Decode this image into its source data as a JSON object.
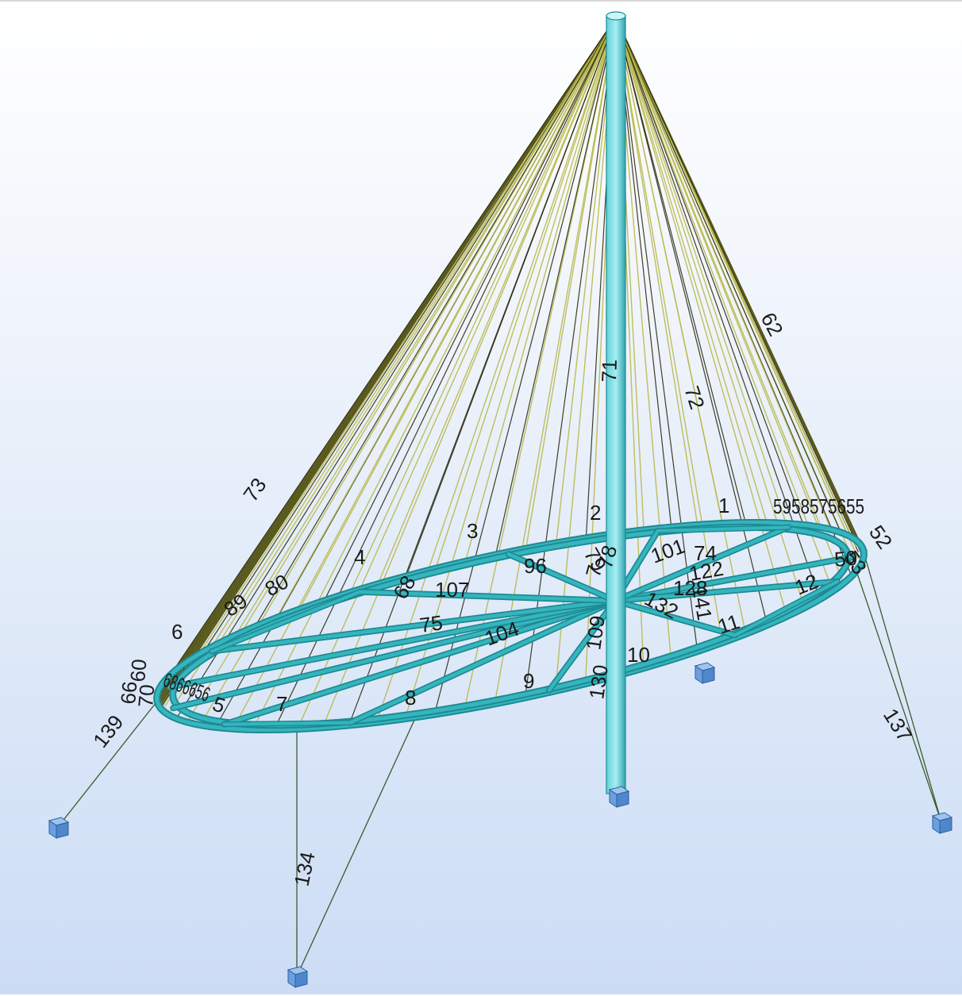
{
  "viewport": {
    "background_top": "#ffffff",
    "background_bottom": "#ccdcf5",
    "tube_color": "#35b5bd",
    "tube_edge": "#1e8a94",
    "cable_dark": "#2a2a10",
    "cable_light": "#b8b84a",
    "stay_color": "#3c5a2c",
    "support_color": "#6aa0e0"
  },
  "member_labels": [
    {
      "id": "m73",
      "text": "73"
    },
    {
      "id": "m62",
      "text": "62"
    },
    {
      "id": "m71",
      "text": "71"
    },
    {
      "id": "m72",
      "text": "72"
    },
    {
      "id": "m1",
      "text": "1"
    },
    {
      "id": "m2",
      "text": "2"
    },
    {
      "id": "m3",
      "text": "3"
    },
    {
      "id": "m4",
      "text": "4"
    },
    {
      "id": "m6",
      "text": "6"
    },
    {
      "id": "m7",
      "text": "7"
    },
    {
      "id": "m8",
      "text": "8"
    },
    {
      "id": "m9",
      "text": "9"
    },
    {
      "id": "m10",
      "text": "10"
    },
    {
      "id": "m11",
      "text": "11"
    },
    {
      "id": "m12",
      "text": "12"
    },
    {
      "id": "m89",
      "text": "89"
    },
    {
      "id": "m80",
      "text": "80"
    },
    {
      "id": "m68",
      "text": "68"
    },
    {
      "id": "m107",
      "text": "107"
    },
    {
      "id": "m75",
      "text": "75"
    },
    {
      "id": "m96",
      "text": "96"
    },
    {
      "id": "m104",
      "text": "104"
    },
    {
      "id": "m109",
      "text": "109"
    },
    {
      "id": "m130",
      "text": "130"
    },
    {
      "id": "m101",
      "text": "101"
    },
    {
      "id": "m74",
      "text": "74"
    },
    {
      "id": "m122",
      "text": "122"
    },
    {
      "id": "m128",
      "text": "128"
    },
    {
      "id": "m132",
      "text": "132"
    },
    {
      "id": "m141",
      "text": "141"
    },
    {
      "id": "m79",
      "text": "79"
    },
    {
      "id": "m78",
      "text": "78"
    },
    {
      "id": "m7x",
      "text": "7"
    },
    {
      "id": "m60",
      "text": "60"
    },
    {
      "id": "m66",
      "text": "66"
    },
    {
      "id": "m70",
      "text": "70"
    },
    {
      "id": "m139",
      "text": "139"
    },
    {
      "id": "m134",
      "text": "134"
    },
    {
      "id": "m137",
      "text": "137"
    },
    {
      "id": "m5959",
      "text": "5958575655"
    },
    {
      "id": "m52",
      "text": "52"
    },
    {
      "id": "m53",
      "text": "53"
    },
    {
      "id": "m50",
      "text": "50"
    },
    {
      "id": "mcluster",
      "text": "6866656"
    },
    {
      "id": "m5",
      "text": "5"
    }
  ]
}
